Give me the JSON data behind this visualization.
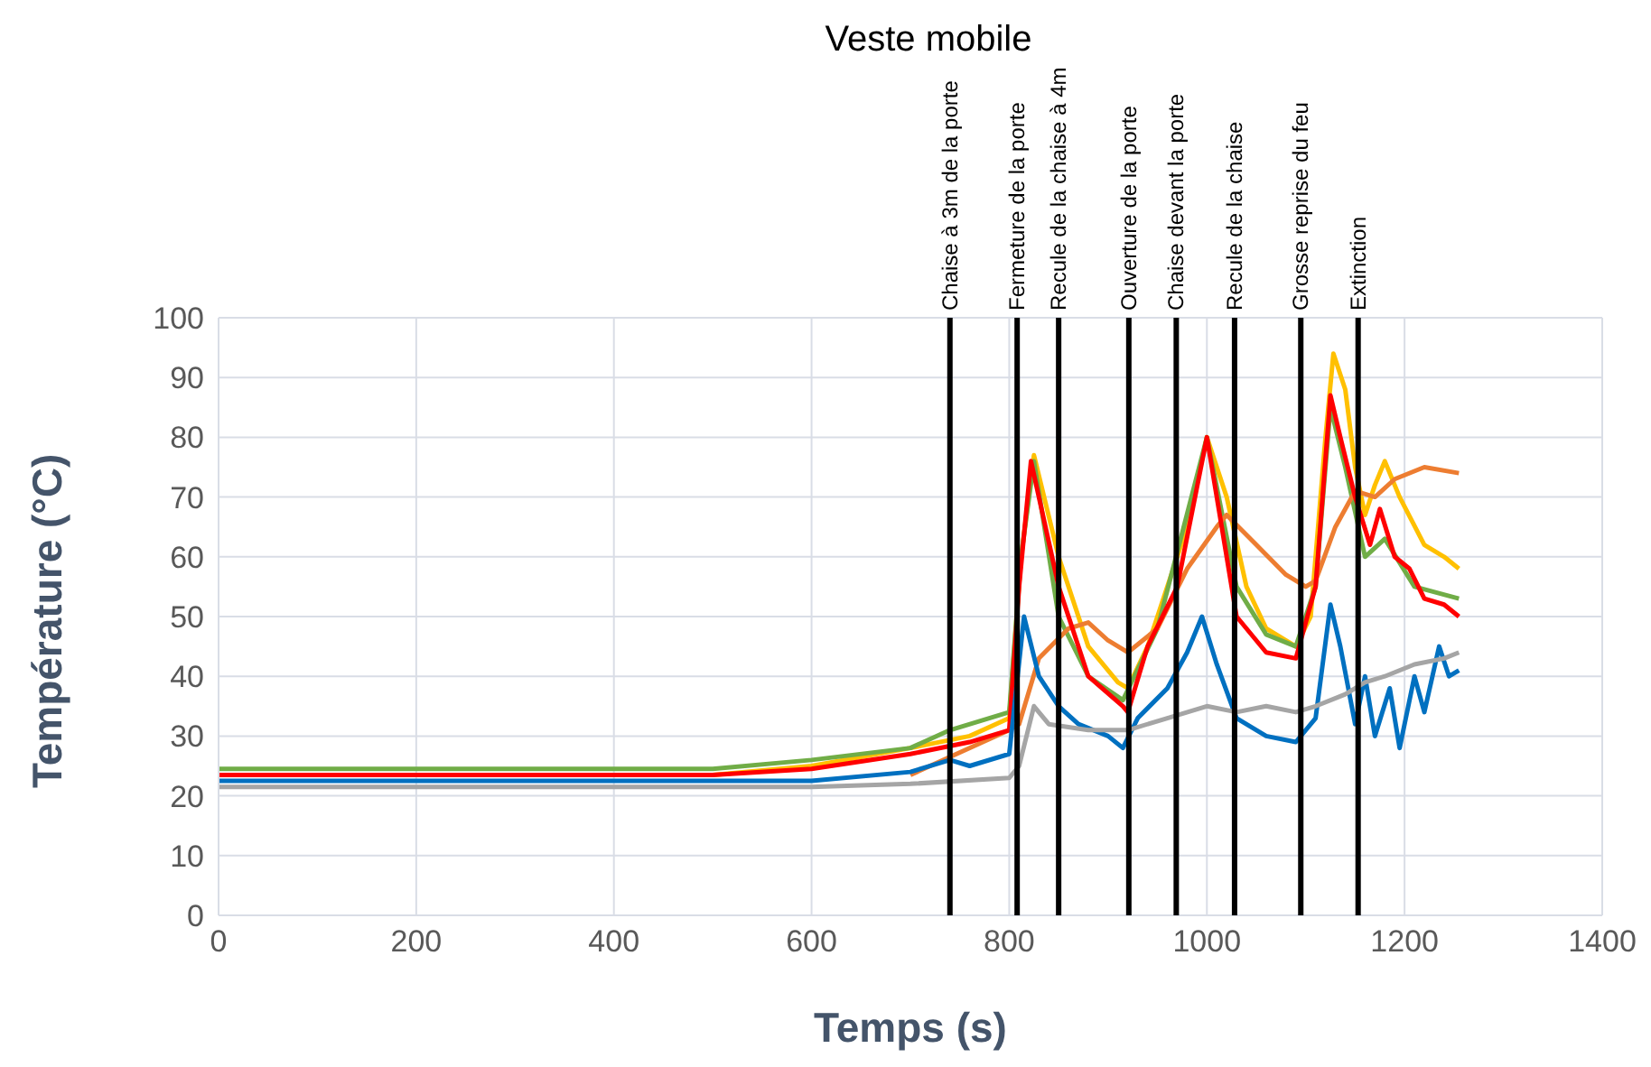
{
  "chart_data": {
    "type": "line",
    "title": "Veste mobile",
    "xlabel": "Temps (s)",
    "ylabel": "Température (°C)",
    "xlim": [
      0,
      1400
    ],
    "xticks": [
      0,
      200,
      400,
      600,
      800,
      1000,
      1200,
      1400
    ],
    "ylim": [
      0,
      100
    ],
    "yticks": [
      0,
      10,
      20,
      30,
      40,
      50,
      60,
      70,
      80,
      90,
      100
    ],
    "grid": true,
    "legend": false,
    "marker": "none",
    "series": [
      {
        "color": "#ffc000",
        "x": [
          500,
          600,
          700,
          760,
          800,
          812,
          825,
          850,
          880,
          910,
          920,
          940,
          960,
          980,
          1000,
          1020,
          1040,
          1060,
          1090,
          1105,
          1120,
          1128,
          1140,
          1150,
          1160,
          1170,
          1180,
          1195,
          1220,
          1240,
          1255
        ],
        "values": [
          23.5,
          25,
          28,
          30,
          33,
          60,
          77,
          60,
          45,
          39,
          38,
          45,
          55,
          65,
          80,
          70,
          55,
          48,
          45,
          50,
          80,
          94,
          88,
          75,
          67,
          72,
          76,
          70,
          62,
          60,
          58
        ]
      },
      {
        "color": "#70ad47",
        "x": [
          0,
          200,
          400,
          500,
          600,
          700,
          740,
          800,
          812,
          825,
          850,
          880,
          915,
          950,
          1000,
          1030,
          1060,
          1090,
          1110,
          1125,
          1140,
          1160,
          1180,
          1210,
          1255
        ],
        "values": [
          24.5,
          24.5,
          24.5,
          24.5,
          26,
          28,
          31,
          34,
          60,
          76,
          50,
          40,
          36,
          48,
          80,
          55,
          47,
          45,
          55,
          85,
          75,
          60,
          63,
          55,
          53
        ]
      },
      {
        "color": "#ed7d31",
        "x": [
          700,
          800,
          810,
          830,
          860,
          880,
          900,
          920,
          950,
          980,
          1010,
          1020,
          1050,
          1080,
          1100,
          1110,
          1130,
          1150,
          1170,
          1190,
          1220,
          1255
        ],
        "values": [
          23.5,
          31,
          32,
          43,
          48,
          49,
          46,
          44,
          48,
          58,
          65,
          67,
          62,
          57,
          55,
          56,
          65,
          71,
          70,
          73,
          75,
          74
        ]
      },
      {
        "color": "#ff0000",
        "x": [
          0,
          200,
          400,
          500,
          600,
          700,
          760,
          800,
          810,
          822,
          850,
          880,
          915,
          920,
          940,
          970,
          1000,
          1015,
          1030,
          1060,
          1090,
          1110,
          1125,
          1135,
          1150,
          1165,
          1175,
          1190,
          1205,
          1220,
          1240,
          1255
        ],
        "values": [
          23.5,
          23.5,
          23.5,
          23.5,
          24.5,
          27,
          29,
          31,
          55,
          76,
          55,
          40,
          35,
          34,
          45,
          55,
          80,
          65,
          50,
          44,
          43,
          55,
          87,
          80,
          70,
          62,
          68,
          60,
          58,
          53,
          52,
          50
        ]
      },
      {
        "color": "#0070c0",
        "x": [
          0,
          200,
          400,
          600,
          700,
          740,
          760,
          800,
          815,
          830,
          850,
          870,
          900,
          915,
          930,
          960,
          980,
          995,
          1010,
          1030,
          1060,
          1090,
          1110,
          1125,
          1135,
          1150,
          1160,
          1170,
          1185,
          1195,
          1210,
          1220,
          1235,
          1245,
          1255
        ],
        "values": [
          22.5,
          22.5,
          22.5,
          22.5,
          24,
          26,
          25,
          27,
          50,
          40,
          35,
          32,
          30,
          28,
          33,
          38,
          44,
          50,
          42,
          33,
          30,
          29,
          33,
          52,
          45,
          32,
          40,
          30,
          38,
          28,
          40,
          34,
          45,
          40,
          41
        ]
      },
      {
        "color": "#a5a5a5",
        "x": [
          0,
          200,
          400,
          600,
          700,
          800,
          810,
          825,
          840,
          880,
          920,
          960,
          1000,
          1030,
          1060,
          1090,
          1110,
          1140,
          1160,
          1180,
          1210,
          1240,
          1255
        ],
        "values": [
          21.5,
          21.5,
          21.5,
          21.5,
          22,
          23,
          25,
          35,
          32,
          31,
          31,
          33,
          35,
          34,
          35,
          34,
          35,
          37,
          39,
          40,
          42,
          43,
          44
        ]
      }
    ],
    "ref_lines": [
      {
        "axis": "x",
        "value": 740,
        "label": "Chaise à 3m de la porte",
        "color": "#000000"
      },
      {
        "axis": "x",
        "value": 808,
        "label": "Fermeture de la porte",
        "color": "#000000"
      },
      {
        "axis": "x",
        "value": 850,
        "label": "Recule de la chaise à 4m",
        "color": "#000000"
      },
      {
        "axis": "x",
        "value": 921,
        "label": "Ouverture de la porte",
        "color": "#000000"
      },
      {
        "axis": "x",
        "value": 969,
        "label": "Chaise devant la porte",
        "color": "#000000"
      },
      {
        "axis": "x",
        "value": 1028,
        "label": "Recule de la chaise",
        "color": "#000000"
      },
      {
        "axis": "x",
        "value": 1095,
        "label": "Grosse reprise du feu",
        "color": "#000000"
      },
      {
        "axis": "x",
        "value": 1153,
        "label": "Extinction",
        "color": "#000000"
      }
    ]
  }
}
